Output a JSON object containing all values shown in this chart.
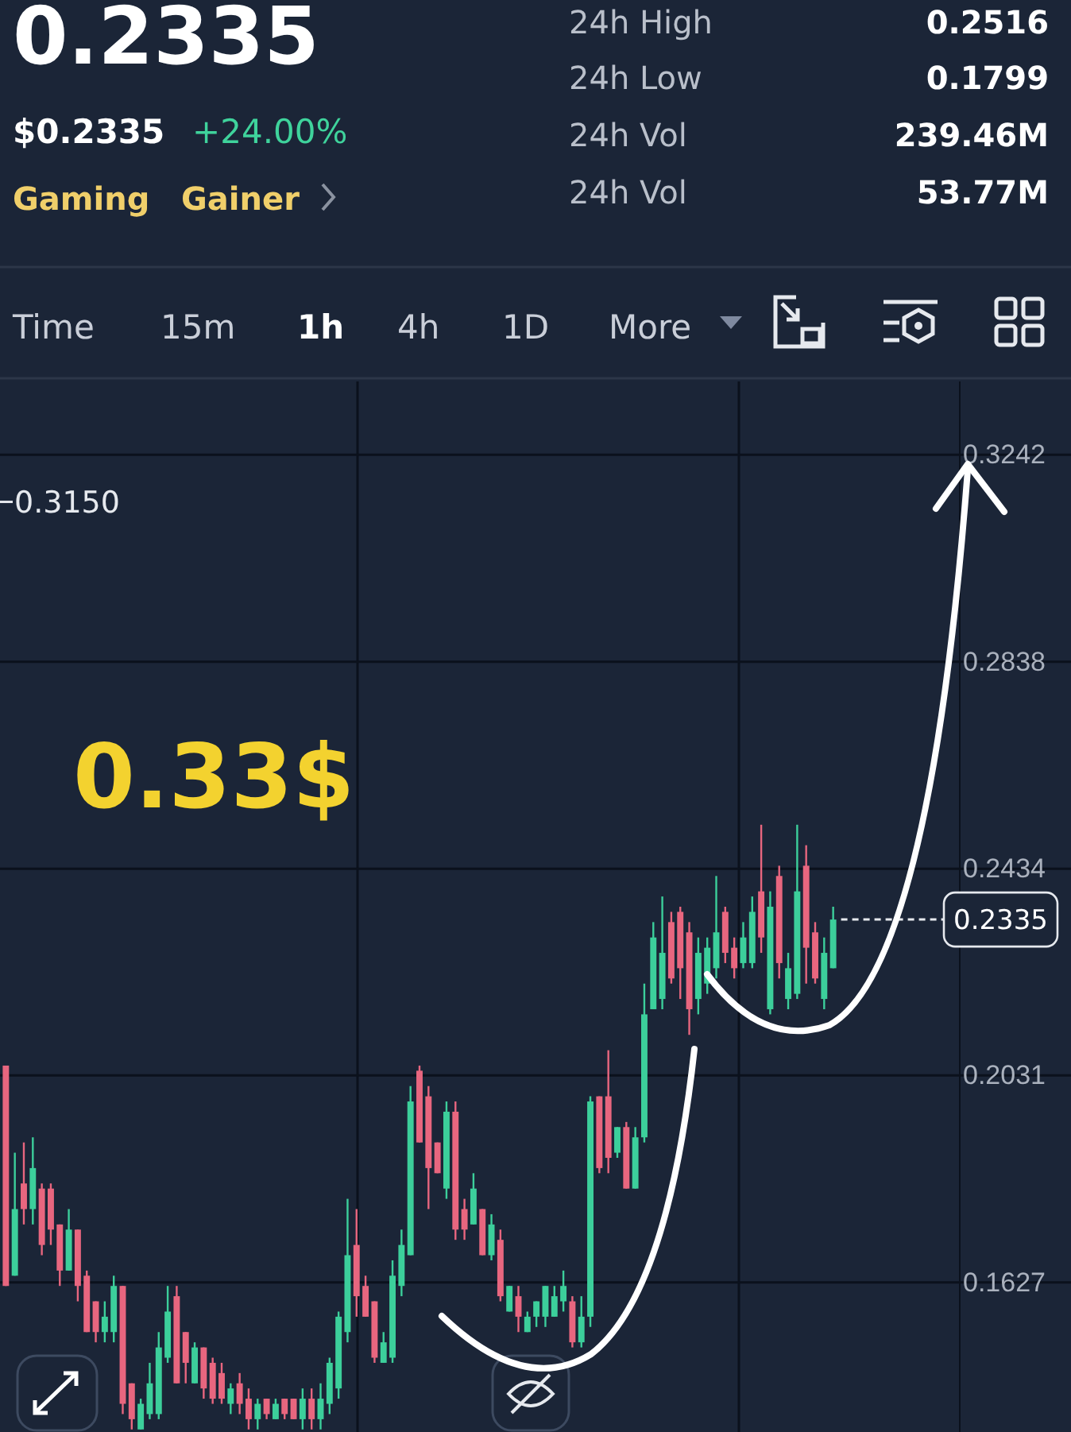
{
  "chart_data": {
    "type": "candlestick",
    "categories": [
      null,
      null,
      null,
      null,
      null,
      null,
      null,
      null,
      null,
      null,
      null,
      null,
      null,
      null,
      null,
      null,
      null,
      null,
      null,
      null,
      null,
      null,
      null,
      null,
      null,
      null,
      null,
      null,
      null,
      null,
      null,
      null,
      null,
      null,
      null,
      null,
      null,
      null,
      null,
      null,
      null,
      null,
      null,
      null,
      null,
      null,
      null,
      null,
      null,
      null,
      null,
      null,
      null,
      null,
      null,
      null,
      null,
      null,
      null,
      null,
      null,
      null,
      null,
      null,
      null,
      null,
      null,
      null,
      null,
      null,
      null,
      null,
      null,
      null,
      null,
      null,
      null,
      null,
      null,
      null,
      null,
      null,
      null,
      null,
      null,
      null,
      null,
      null,
      null,
      null,
      null,
      null,
      null
    ],
    "ohlc": [
      [
        0.205,
        0.205,
        0.162,
        0.162
      ],
      [
        0.164,
        0.188,
        0.164,
        0.177
      ],
      [
        0.182,
        0.19,
        0.174,
        0.177
      ],
      [
        0.177,
        0.191,
        0.174,
        0.185
      ],
      [
        0.181,
        0.182,
        0.168,
        0.17
      ],
      [
        0.181,
        0.182,
        0.17,
        0.173
      ],
      [
        0.174,
        0.174,
        0.162,
        0.165
      ],
      [
        0.165,
        0.177,
        0.165,
        0.173
      ],
      [
        0.173,
        0.173,
        0.159,
        0.162
      ],
      [
        0.164,
        0.165,
        0.153,
        0.153
      ],
      [
        0.159,
        0.159,
        0.151,
        0.153
      ],
      [
        0.153,
        0.159,
        0.151,
        0.156
      ],
      [
        0.153,
        0.164,
        0.151,
        0.162
      ],
      [
        0.162,
        0.162,
        0.137,
        0.139
      ],
      [
        0.143,
        0.143,
        0.134,
        0.136
      ],
      [
        0.134,
        0.14,
        0.134,
        0.139
      ],
      [
        0.137,
        0.147,
        0.136,
        0.143
      ],
      [
        0.137,
        0.153,
        0.136,
        0.15
      ],
      [
        0.148,
        0.162,
        0.147,
        0.157
      ],
      [
        0.16,
        0.162,
        0.143,
        0.143
      ],
      [
        0.153,
        0.153,
        0.143,
        0.147
      ],
      [
        0.143,
        0.151,
        0.143,
        0.15
      ],
      [
        0.15,
        0.15,
        0.14,
        0.142
      ],
      [
        0.147,
        0.148,
        0.139,
        0.14
      ],
      [
        0.145,
        0.147,
        0.139,
        0.14
      ],
      [
        0.139,
        0.143,
        0.137,
        0.142
      ],
      [
        0.143,
        0.145,
        0.137,
        0.139
      ],
      [
        0.14,
        0.142,
        0.134,
        0.136
      ],
      [
        0.136,
        0.14,
        0.134,
        0.139
      ],
      [
        0.14,
        0.14,
        0.136,
        0.137
      ],
      [
        0.136,
        0.14,
        0.136,
        0.139
      ],
      [
        0.14,
        0.14,
        0.136,
        0.137
      ],
      [
        0.14,
        0.14,
        0.136,
        0.136
      ],
      [
        0.136,
        0.142,
        0.134,
        0.14
      ],
      [
        0.14,
        0.142,
        0.134,
        0.136
      ],
      [
        0.136,
        0.143,
        0.134,
        0.14
      ],
      [
        0.139,
        0.148,
        0.137,
        0.147
      ],
      [
        0.142,
        0.157,
        0.14,
        0.156
      ],
      [
        0.153,
        0.179,
        0.151,
        0.168
      ],
      [
        0.17,
        0.177,
        0.156,
        0.16
      ],
      [
        0.162,
        0.164,
        0.156,
        0.156
      ],
      [
        0.159,
        0.159,
        0.147,
        0.148
      ],
      [
        0.147,
        0.153,
        0.147,
        0.151
      ],
      [
        0.148,
        0.167,
        0.147,
        0.164
      ],
      [
        0.162,
        0.173,
        0.16,
        0.17
      ],
      [
        0.168,
        0.201,
        0.168,
        0.198
      ],
      [
        0.204,
        0.205,
        0.19,
        0.19
      ],
      [
        0.199,
        0.201,
        0.177,
        0.185
      ],
      [
        0.19,
        0.19,
        0.184,
        0.184
      ],
      [
        0.181,
        0.198,
        0.179,
        0.196
      ],
      [
        0.196,
        0.198,
        0.171,
        0.173
      ],
      [
        0.177,
        0.179,
        0.171,
        0.173
      ],
      [
        0.174,
        0.184,
        0.174,
        0.181
      ],
      [
        0.177,
        0.177,
        0.168,
        0.168
      ],
      [
        0.168,
        0.176,
        0.167,
        0.174
      ],
      [
        0.171,
        0.173,
        0.159,
        0.16
      ],
      [
        0.157,
        0.162,
        0.157,
        0.162
      ],
      [
        0.16,
        0.162,
        0.153,
        0.156
      ],
      [
        0.153,
        0.157,
        0.153,
        0.156
      ],
      [
        0.156,
        0.159,
        0.154,
        0.159
      ],
      [
        0.156,
        0.162,
        0.154,
        0.162
      ],
      [
        0.156,
        0.162,
        0.156,
        0.16
      ],
      [
        0.159,
        0.165,
        0.157,
        0.162
      ],
      [
        0.159,
        0.16,
        0.15,
        0.151
      ],
      [
        0.151,
        0.16,
        0.15,
        0.156
      ],
      [
        0.156,
        0.199,
        0.154,
        0.198
      ],
      [
        0.199,
        0.199,
        0.184,
        0.185
      ],
      [
        0.199,
        0.208,
        0.184,
        0.187
      ],
      [
        0.188,
        0.193,
        0.187,
        0.193
      ],
      [
        0.193,
        0.194,
        0.181,
        0.181
      ],
      [
        0.181,
        0.193,
        0.181,
        0.191
      ],
      [
        0.191,
        0.221,
        0.19,
        0.215
      ],
      [
        0.216,
        0.233,
        0.216,
        0.23
      ],
      [
        0.218,
        0.238,
        0.216,
        0.227
      ],
      [
        0.233,
        0.235,
        0.221,
        0.222
      ],
      [
        0.235,
        0.236,
        0.218,
        0.224
      ],
      [
        0.231,
        0.233,
        0.211,
        0.216
      ],
      [
        0.218,
        0.23,
        0.215,
        0.227
      ],
      [
        0.221,
        0.23,
        0.219,
        0.228
      ],
      [
        0.224,
        0.242,
        0.222,
        0.231
      ],
      [
        0.235,
        0.236,
        0.225,
        0.227
      ],
      [
        0.228,
        0.23,
        0.222,
        0.224
      ],
      [
        0.225,
        0.233,
        0.224,
        0.23
      ],
      [
        0.225,
        0.238,
        0.224,
        0.235
      ],
      [
        0.239,
        0.252,
        0.227,
        0.23
      ],
      [
        0.216,
        0.239,
        0.215,
        0.236
      ],
      [
        0.242,
        0.244,
        0.222,
        0.225
      ],
      [
        0.218,
        0.227,
        0.216,
        0.224
      ],
      [
        0.219,
        0.252,
        0.218,
        0.239
      ],
      [
        0.244,
        0.248,
        0.221,
        0.228
      ],
      [
        0.231,
        0.233,
        0.221,
        0.222
      ],
      [
        0.218,
        0.23,
        0.216,
        0.227
      ],
      [
        0.224,
        0.236,
        0.224,
        0.2335
      ]
    ],
    "ylim": [
      0.1335,
      0.3385
    ],
    "yticks": [
      0.3242,
      0.2838,
      0.2434,
      0.2031,
      0.1627
    ],
    "grid": "y",
    "ref_lines": [
      {
        "axis": "y",
        "value": 0.315,
        "label": "0.3150",
        "line_style": "solid"
      },
      {
        "axis": "y",
        "value": 0.2335,
        "label": "0.2335",
        "line_style": "dashed"
      }
    ],
    "annotations": [
      "0.2335",
      "$0.2335",
      "+24.00%",
      "Gaming",
      "Gainer",
      "24h High",
      "0.2516",
      "24h Low",
      "0.1799",
      "24h Vol",
      "239.46M",
      "24h Vol",
      "53.77M",
      "Time",
      "15m",
      "1h",
      "4h",
      "1D",
      "More",
      "0.33$"
    ]
  }
}
